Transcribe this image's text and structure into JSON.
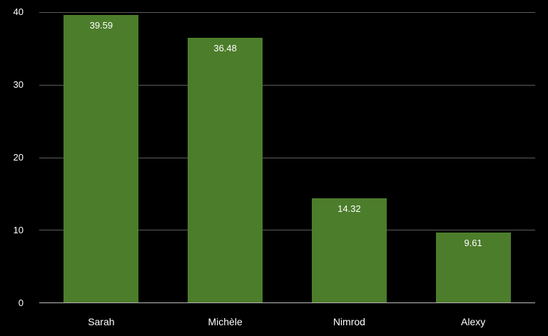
{
  "chart_data": {
    "type": "bar",
    "title": "",
    "xlabel": "",
    "ylabel": "",
    "categories": [
      "Sarah",
      "Michèle",
      "Nimrod",
      "Alexy"
    ],
    "values": [
      39.59,
      36.48,
      14.32,
      9.61
    ],
    "value_labels": [
      "39.59",
      "36.48",
      "14.32",
      "9.61"
    ],
    "ylim": [
      0,
      40
    ],
    "yticks": [
      0,
      10,
      20,
      30,
      40
    ],
    "grid": true,
    "legend": false,
    "layout": {
      "bar_width_fraction": 0.605,
      "colors": {
        "background": "#000000",
        "bar": "#4c7d2b",
        "gridline": "#5c5c5c",
        "axis_line": "#b9b9b9",
        "text": "#ffffff"
      }
    }
  }
}
